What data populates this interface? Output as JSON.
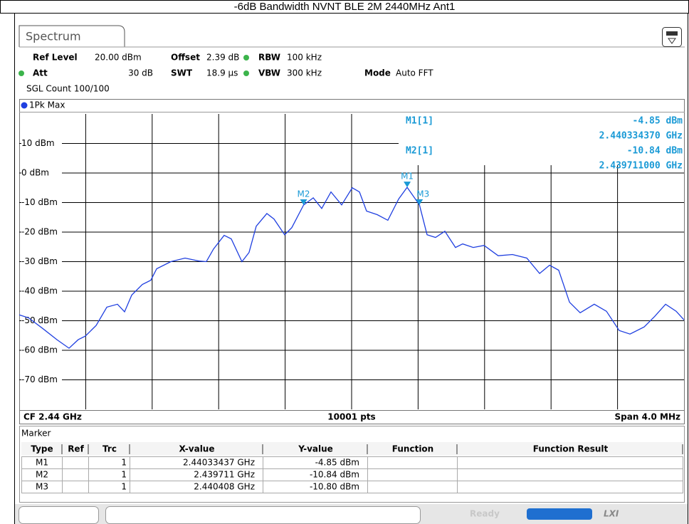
{
  "title": "-6dB Bandwidth NVNT BLE 2M 2440MHz Ant1",
  "tab": "Spectrum",
  "settings": {
    "ref_level_label": "Ref Level",
    "ref_level": "20.00 dBm",
    "offset_label": "Offset",
    "offset": "2.39 dB",
    "rbw_label": "RBW",
    "rbw": "100 kHz",
    "att_label": "Att",
    "att": "30 dB",
    "swt_label": "SWT",
    "swt": "18.9 µs",
    "vbw_label": "VBW",
    "vbw": "300 kHz",
    "mode_label": "Mode",
    "mode": "Auto FFT",
    "count": "SGL Count 100/100"
  },
  "chart_data": {
    "type": "line",
    "xlim": [
      2.438,
      2.442
    ],
    "ylim": [
      -80,
      20
    ],
    "yticks": [
      {
        "value": 10,
        "label": "10 dBm"
      },
      {
        "value": 0,
        "label": "0 dBm"
      },
      {
        "value": -10,
        "label": "-10 dBm"
      },
      {
        "value": -20,
        "label": "-20 dBm"
      },
      {
        "value": -30,
        "label": "-30 dBm"
      },
      {
        "value": -40,
        "label": "-40 dBm"
      },
      {
        "value": -50,
        "label": "-50 dBm"
      },
      {
        "value": -60,
        "label": "-60 dBm"
      },
      {
        "value": -70,
        "label": "-70 dBm"
      }
    ],
    "grid": true,
    "x_divisions": 10,
    "x": [
      2.438,
      2.438056,
      2.438141,
      2.438227,
      2.4383,
      2.438355,
      2.438398,
      2.438463,
      2.438527,
      2.438591,
      2.438634,
      2.438677,
      2.438741,
      2.438792,
      2.438827,
      2.438912,
      2.438998,
      2.439084,
      2.439126,
      2.439169,
      2.439233,
      2.439276,
      2.43934,
      2.439383,
      2.439426,
      2.43949,
      2.439533,
      2.439597,
      2.43964,
      2.439711,
      2.439769,
      2.43982,
      2.439876,
      2.43994,
      2.440004,
      2.440047,
      2.44009,
      2.440154,
      2.440218,
      2.440283,
      2.440334,
      2.440408,
      2.440454,
      2.440505,
      2.440561,
      2.440625,
      2.440668,
      2.440732,
      2.440797,
      2.440882,
      2.440968,
      2.441054,
      2.441131,
      2.441191,
      2.441246,
      2.441311,
      2.441375,
      2.44146,
      2.441533,
      2.44161,
      2.441675,
      2.44176,
      2.441824,
      2.441889,
      2.441953,
      2.442
    ],
    "series": [
      {
        "name": "1Pk Max",
        "color": "#1f3fe0",
        "values": [
          -48,
          -49,
          -52.6,
          -56.4,
          -59.3,
          -56.4,
          -55.2,
          -51.6,
          -45.4,
          -44.4,
          -47,
          -41.3,
          -37.7,
          -36.3,
          -32.4,
          -30,
          -28.8,
          -29.8,
          -30,
          -25.7,
          -21.1,
          -22.3,
          -30,
          -26.9,
          -18,
          -13.7,
          -15.6,
          -20.9,
          -18.5,
          -10.84,
          -8.4,
          -12,
          -6.4,
          -10.8,
          -5,
          -6.4,
          -12.9,
          -14.1,
          -16,
          -8.8,
          -4.85,
          -10.8,
          -20.9,
          -21.8,
          -19.7,
          -25.2,
          -24,
          -25.2,
          -24.5,
          -28,
          -27.6,
          -28.8,
          -34,
          -31.2,
          -32.9,
          -43.7,
          -47.3,
          -44.4,
          -46.8,
          -53.3,
          -54.5,
          -52.1,
          -48.5,
          -44.4,
          -46.8,
          -49.7
        ]
      }
    ],
    "marker_color": "#1a9ad6",
    "markers": [
      {
        "name": "M1",
        "x": 2.44033437,
        "y": -4.85
      },
      {
        "name": "M2",
        "x": 2.439711,
        "y": -10.84
      },
      {
        "name": "M3",
        "x": 2.440408,
        "y": -10.8
      }
    ],
    "marker_info": [
      {
        "label": "M1[1]",
        "y": "-4.85 dBm",
        "x": "2.440334370 GHz"
      },
      {
        "label": "M2[1]",
        "y": "-10.84 dBm",
        "x": "2.439711000 GHz"
      }
    ],
    "cf": "CF 2.44 GHz",
    "points": "10001 pts",
    "span": "Span 4.0 MHz"
  },
  "marker_table": {
    "title": "Marker",
    "columns": [
      "Type",
      "Ref",
      "Trc",
      "X-value",
      "Y-value",
      "Function",
      "Function Result"
    ],
    "rows": [
      {
        "type": "M1",
        "trc": "1",
        "x": "2.44033437 GHz",
        "y": "-4.85 dBm"
      },
      {
        "type": "M2",
        "trc": "1",
        "x": "2.439711 GHz",
        "y": "-10.84 dBm"
      },
      {
        "type": "M3",
        "trc": "1",
        "x": "2.440408 GHz",
        "y": "-10.80 dBm"
      }
    ]
  },
  "status": "Ready",
  "lxi": "LXI"
}
